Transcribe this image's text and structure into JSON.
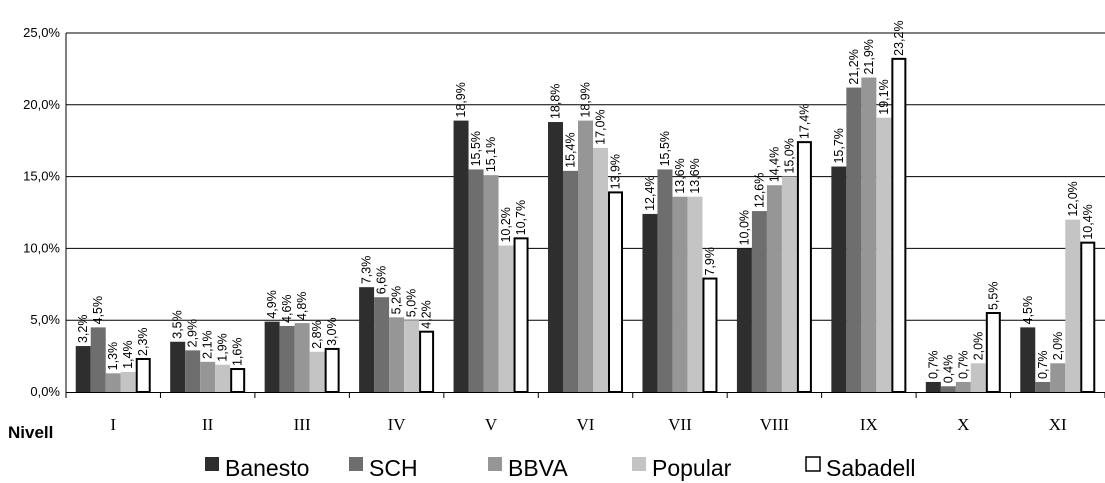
{
  "chart_data": {
    "type": "bar",
    "xlabel": "Nivell",
    "ylabel": "",
    "title": "",
    "ylim": [
      0,
      25
    ],
    "y_ticks": [
      "0,0%",
      "5,0%",
      "10,0%",
      "15,0%",
      "20,0%",
      "25,0%"
    ],
    "grid": "horizontal",
    "legend_position": "bottom",
    "categories": [
      "I",
      "II",
      "III",
      "IV",
      "V",
      "VI",
      "VII",
      "VIII",
      "IX",
      "X",
      "XI"
    ],
    "series": [
      {
        "name": "Banesto",
        "color": "#2e2e2e",
        "values": [
          3.2,
          3.5,
          4.9,
          7.3,
          18.9,
          18.8,
          12.4,
          10.0,
          15.7,
          0.7,
          4.5
        ]
      },
      {
        "name": "SCH",
        "color": "#6e6e6e",
        "values": [
          4.5,
          2.9,
          4.6,
          6.6,
          15.5,
          15.4,
          15.5,
          12.6,
          21.2,
          0.4,
          0.7
        ]
      },
      {
        "name": "BBVA",
        "color": "#969696",
        "values": [
          1.3,
          2.1,
          4.8,
          5.2,
          15.1,
          18.9,
          13.6,
          14.4,
          21.9,
          0.7,
          2.0
        ]
      },
      {
        "name": "Popular",
        "color": "#c4c4c4",
        "values": [
          1.4,
          1.9,
          2.8,
          5.0,
          10.2,
          17.0,
          13.6,
          15.0,
          19.1,
          2.0,
          12.0
        ]
      },
      {
        "name": "Sabadell",
        "color": "#ffffff",
        "values": [
          2.3,
          1.6,
          3.0,
          4.2,
          10.7,
          13.9,
          7.9,
          17.4,
          23.2,
          5.5,
          10.4
        ]
      }
    ]
  }
}
